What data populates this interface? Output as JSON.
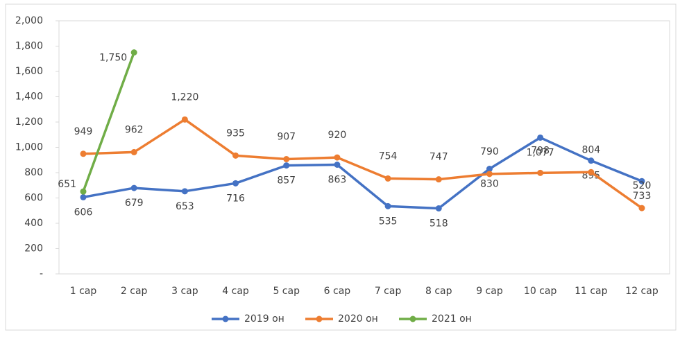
{
  "chart_data": {
    "type": "line",
    "categories": [
      "1 сар",
      "2 сар",
      "3 сар",
      "4 сар",
      "5 сар",
      "6 сар",
      "7 сар",
      "8 сар",
      "9 сар",
      "10 сар",
      "11 сар",
      "12 сар"
    ],
    "series": [
      {
        "name": "2019 он",
        "color": "#4472c4",
        "values": [
          606,
          679,
          653,
          716,
          857,
          863,
          535,
          518,
          830,
          1077,
          895,
          733
        ],
        "value_labels": [
          "606",
          "679",
          "653",
          "716",
          "857",
          "863",
          "535",
          "518",
          "830",
          "1,077",
          "895",
          "733"
        ]
      },
      {
        "name": "2020 он",
        "color": "#ed7d31",
        "values": [
          949,
          962,
          1220,
          935,
          907,
          920,
          754,
          747,
          790,
          798,
          804,
          520
        ],
        "value_labels": [
          "949",
          "962",
          "1,220",
          "935",
          "907",
          "920",
          "754",
          "747",
          "790",
          "798",
          "804",
          "520"
        ]
      },
      {
        "name": "2021 он",
        "color": "#70ad47",
        "values": [
          651,
          1750,
          null,
          null,
          null,
          null,
          null,
          null,
          null,
          null,
          null,
          null
        ],
        "value_labels": [
          "651",
          "1,750",
          null,
          null,
          null,
          null,
          null,
          null,
          null,
          null,
          null,
          null
        ]
      }
    ],
    "ylim": [
      0,
      2000
    ],
    "yticks": [
      {
        "value": 0,
        "label": "-"
      },
      200,
      400,
      600,
      800,
      {
        "value": 1000,
        "label": "1,000"
      },
      {
        "value": 1200,
        "label": "1,200"
      },
      {
        "value": 1400,
        "label": "1,400"
      },
      {
        "value": 1600,
        "label": "1,600"
      },
      {
        "value": 1800,
        "label": "1,800"
      },
      {
        "value": 2000,
        "label": "2,000"
      }
    ],
    "legend": "bottom"
  }
}
